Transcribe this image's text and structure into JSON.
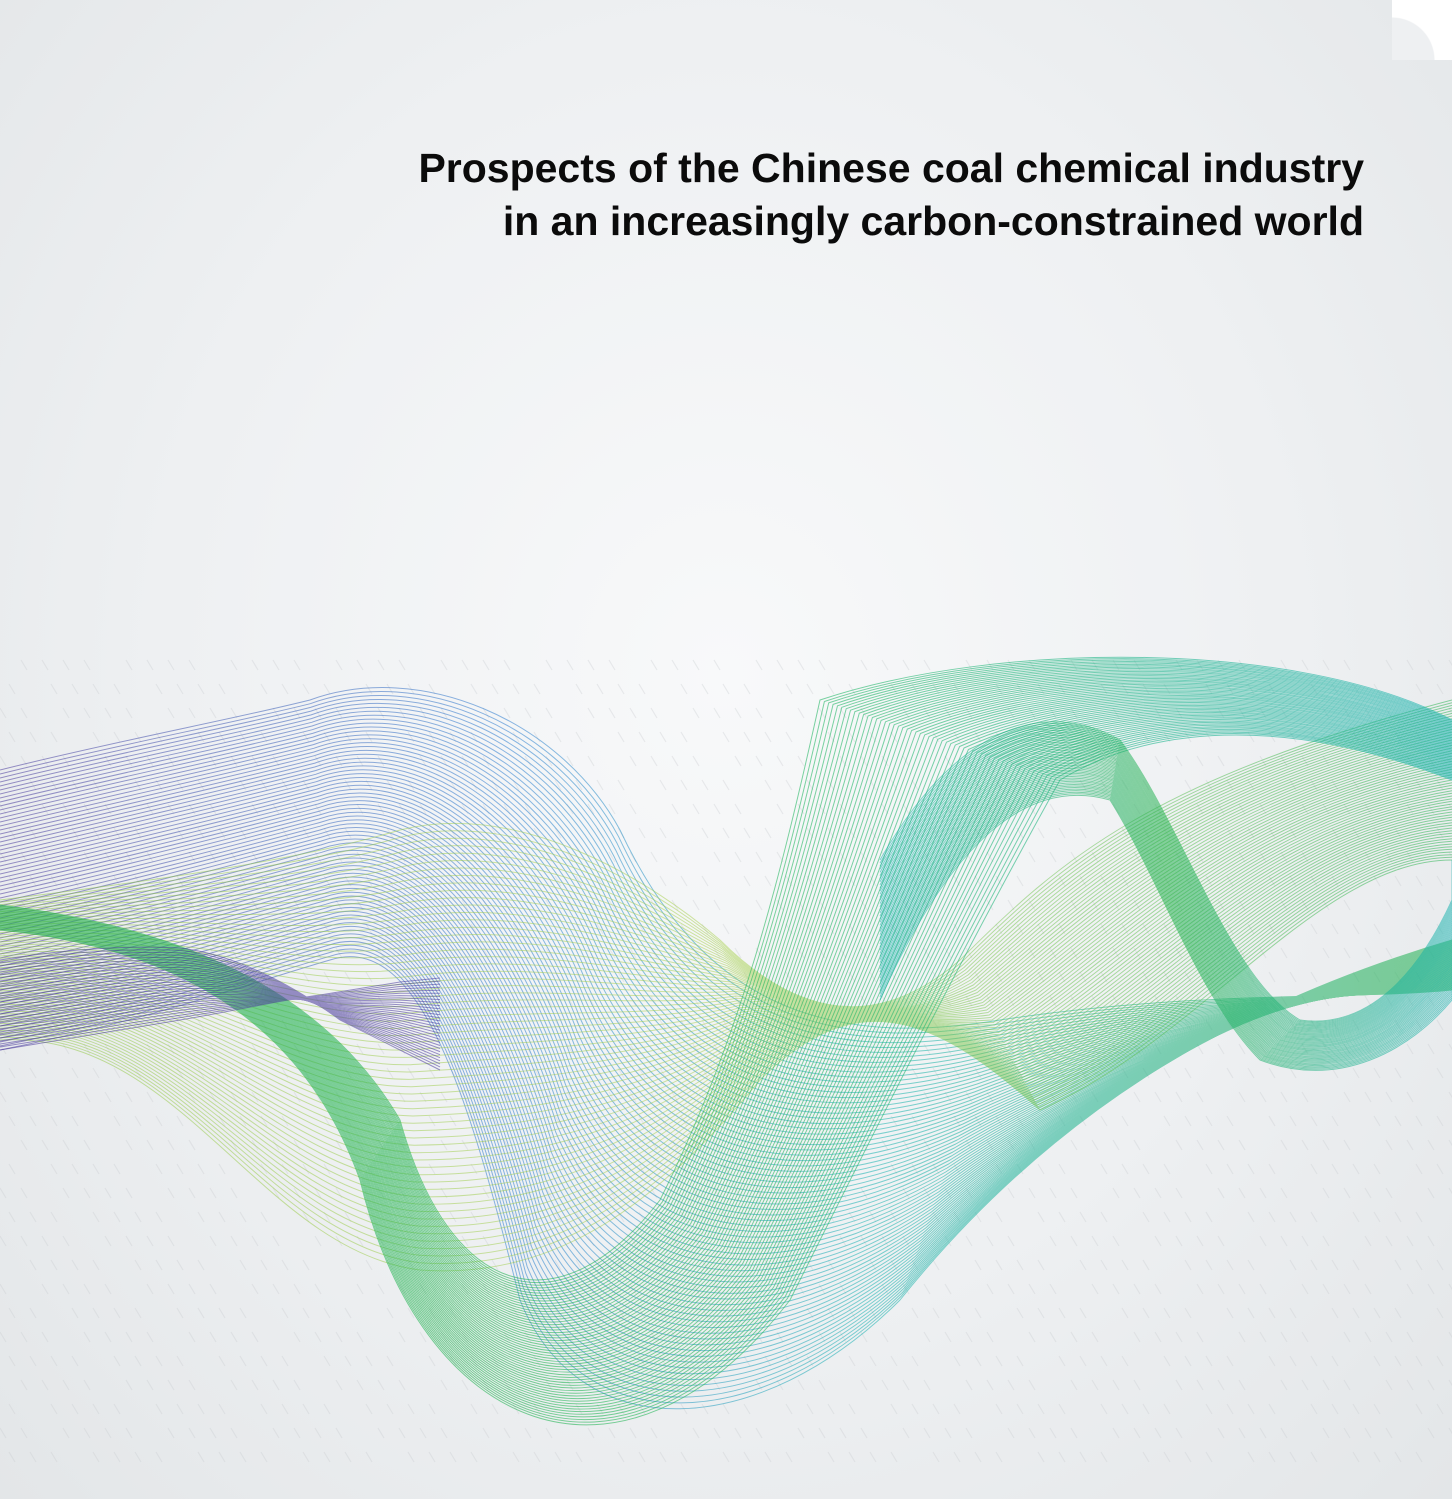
{
  "cover": {
    "title_line1": "Prospects of the Chinese coal chemical industry",
    "title_line2": "in an increasingly carbon-constrained world"
  },
  "colors": {
    "background": "#eef0f2",
    "title": "#0b0b0b",
    "wave_green": "#1fb04a",
    "wave_lime": "#8cc63f",
    "wave_teal": "#19b3b1",
    "wave_blue": "#2f7fd0",
    "wave_purple": "#4a3a9c"
  },
  "art": {
    "description_icon": "wave-ribbon-graphic"
  }
}
